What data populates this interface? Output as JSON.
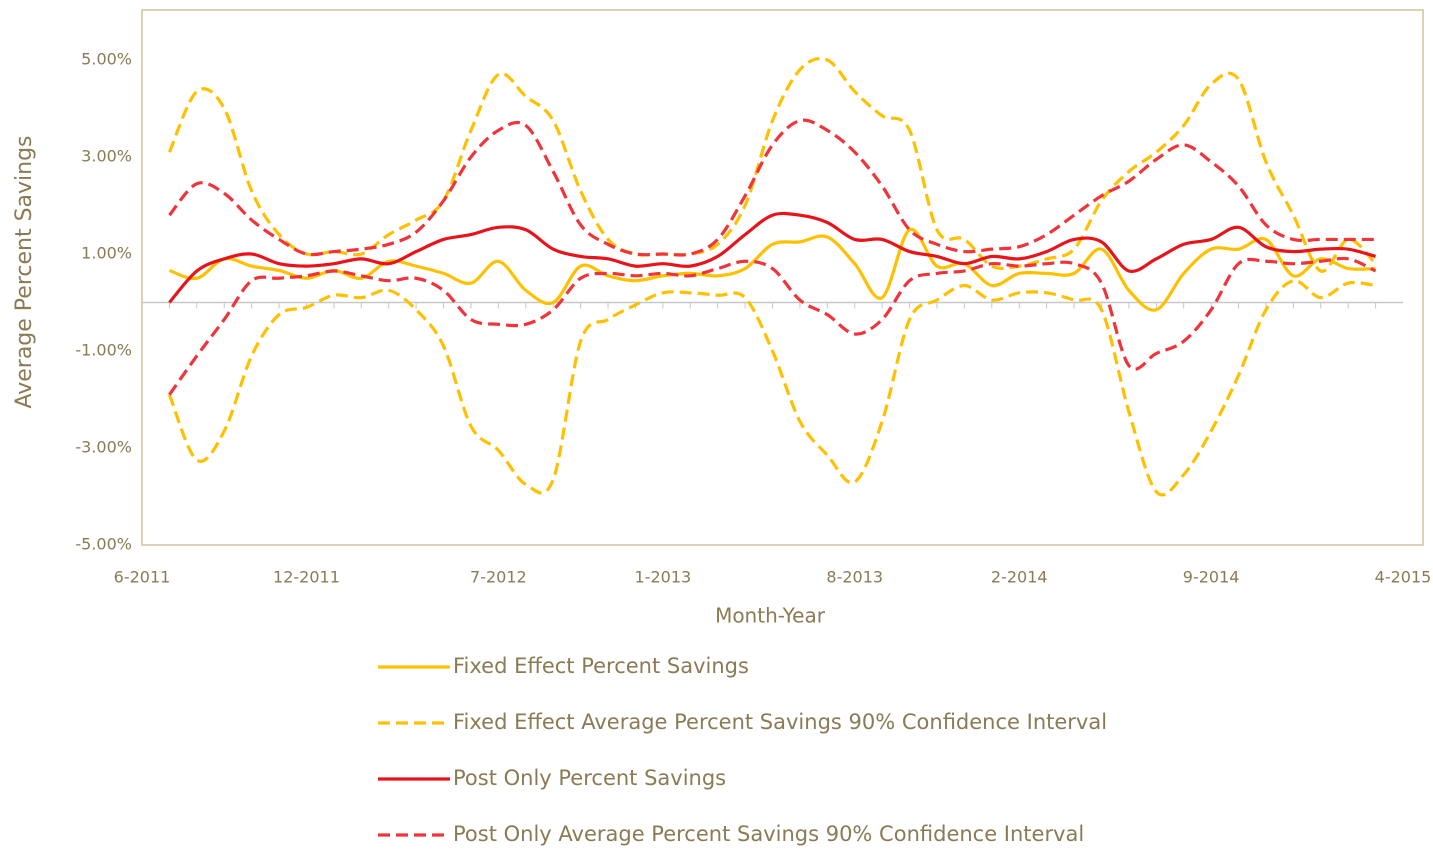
{
  "chart_data": {
    "type": "line",
    "y_label": "Average Percent Savings",
    "x_label": "Month-Year",
    "x": [
      "7-2011",
      "8-2011",
      "9-2011",
      "10-2011",
      "11-2011",
      "12-2011",
      "1-2012",
      "2-2012",
      "3-2012",
      "4-2012",
      "5-2012",
      "6-2012",
      "7-2012",
      "8-2012",
      "9-2012",
      "10-2012",
      "11-2012",
      "12-2012",
      "1-2013",
      "2-2013",
      "3-2013",
      "4-2013",
      "5-2013",
      "6-2013",
      "7-2013",
      "8-2013",
      "9-2013",
      "10-2013",
      "11-2013",
      "12-2013",
      "1-2014",
      "2-2014",
      "3-2014",
      "4-2014",
      "5-2014",
      "6-2014",
      "7-2014",
      "8-2014",
      "9-2014",
      "10-2014",
      "11-2014",
      "12-2014",
      "1-2015",
      "2-2015",
      "3-2015"
    ],
    "xlim": [
      "6-2011",
      "4-2015"
    ],
    "xticks": [
      "6-2011",
      "12-2011",
      "7-2012",
      "1-2013",
      "8-2013",
      "2-2014",
      "9-2014",
      "4-2015"
    ],
    "ylim": [
      -5,
      5
    ],
    "yticks": [
      {
        "value": -5,
        "label": "-5.00%"
      },
      {
        "value": -3,
        "label": "-3.00%"
      },
      {
        "value": -1,
        "label": "-1.00%"
      },
      {
        "value": 1,
        "label": "1.00%"
      },
      {
        "value": 3,
        "label": "3.00%"
      },
      {
        "value": 5,
        "label": "5.00%"
      }
    ],
    "smooth": true,
    "series": [
      {
        "name": "Fixed Effect Percent Savings",
        "color": "#ffc000",
        "style": "solid",
        "values": [
          0.66,
          0.5,
          0.9,
          0.75,
          0.66,
          0.5,
          0.66,
          0.5,
          0.85,
          0.75,
          0.6,
          0.4,
          0.85,
          0.25,
          0,
          0.75,
          0.55,
          0.45,
          0.55,
          0.6,
          0.55,
          0.7,
          1.2,
          1.25,
          1.35,
          0.8,
          0.1,
          1.5,
          0.75,
          0.8,
          0.35,
          0.6,
          0.6,
          0.6,
          1.1,
          0.25,
          -0.15,
          0.6,
          1.1,
          1.1,
          1.3,
          0.55,
          0.9,
          0.7,
          0.7
        ]
      },
      {
        "name": "Fixed Effect Average Percent Savings 90% Confidence Interval",
        "color": "#ffc000",
        "style": "dashed",
        "upper": [
          3.1,
          4.35,
          4,
          2.3,
          1.4,
          1,
          1.05,
          1,
          1.4,
          1.7,
          2.1,
          3.55,
          4.7,
          4.25,
          3.75,
          2.3,
          1.3,
          1,
          1,
          1,
          1.2,
          2,
          3.75,
          4.8,
          5,
          4.35,
          3.85,
          3.55,
          1.5,
          1.3,
          0.75,
          0.75,
          0.9,
          1.1,
          2.1,
          2.7,
          3.1,
          3.65,
          4.5,
          4.6,
          2.9,
          1.8,
          0.65,
          1.3,
          0.8
        ],
        "lower": [
          -1.9,
          -3.25,
          -2.65,
          -1.1,
          -0.25,
          -0.1,
          0.15,
          0.1,
          0.25,
          -0.15,
          -0.9,
          -2.55,
          -3.05,
          -3.75,
          -3.65,
          -0.8,
          -0.35,
          -0.05,
          0.2,
          0.2,
          0.15,
          0.1,
          -1,
          -2.45,
          -3.15,
          -3.7,
          -2.45,
          -0.35,
          0.05,
          0.35,
          0.05,
          0.2,
          0.2,
          0.05,
          -0.15,
          -2.25,
          -3.9,
          -3.55,
          -2.65,
          -1.5,
          -0.15,
          0.45,
          0.1,
          0.4,
          0.35
        ]
      },
      {
        "name": "Post Only Percent Savings",
        "color": "#e8141b",
        "style": "solid",
        "values": [
          0,
          0.65,
          0.9,
          1,
          0.8,
          0.75,
          0.8,
          0.9,
          0.8,
          1.05,
          1.3,
          1.4,
          1.55,
          1.5,
          1.1,
          0.95,
          0.9,
          0.75,
          0.8,
          0.75,
          0.95,
          1.4,
          1.8,
          1.8,
          1.65,
          1.3,
          1.3,
          1.05,
          0.95,
          0.8,
          0.95,
          0.9,
          1.05,
          1.3,
          1.25,
          0.65,
          0.9,
          1.2,
          1.3,
          1.55,
          1.15,
          1.05,
          1.1,
          1.1,
          0.95
        ]
      },
      {
        "name": "Post Only Average Percent Savings 90% Confidence Interval",
        "color": "#f0343a",
        "style": "dashed",
        "upper": [
          1.8,
          2.45,
          2.25,
          1.7,
          1.3,
          1,
          1.05,
          1.1,
          1.2,
          1.45,
          2.1,
          3,
          3.55,
          3.65,
          2.7,
          1.6,
          1.2,
          1,
          1,
          1,
          1.3,
          2.2,
          3.25,
          3.75,
          3.55,
          3.1,
          2.4,
          1.5,
          1.2,
          1.05,
          1.1,
          1.15,
          1.4,
          1.8,
          2.2,
          2.5,
          2.95,
          3.25,
          2.9,
          2.4,
          1.6,
          1.3,
          1.3,
          1.3,
          1.3
        ],
        "lower": [
          -1.9,
          -1.1,
          -0.35,
          0.45,
          0.5,
          0.55,
          0.65,
          0.55,
          0.45,
          0.5,
          0.25,
          -0.35,
          -0.45,
          -0.45,
          -0.15,
          0.5,
          0.6,
          0.55,
          0.6,
          0.55,
          0.7,
          0.85,
          0.7,
          0.05,
          -0.25,
          -0.65,
          -0.35,
          0.45,
          0.6,
          0.65,
          0.8,
          0.75,
          0.8,
          0.8,
          0.4,
          -1.3,
          -1.05,
          -0.8,
          -0.15,
          0.8,
          0.85,
          0.8,
          0.85,
          0.9,
          0.65
        ]
      }
    ]
  }
}
